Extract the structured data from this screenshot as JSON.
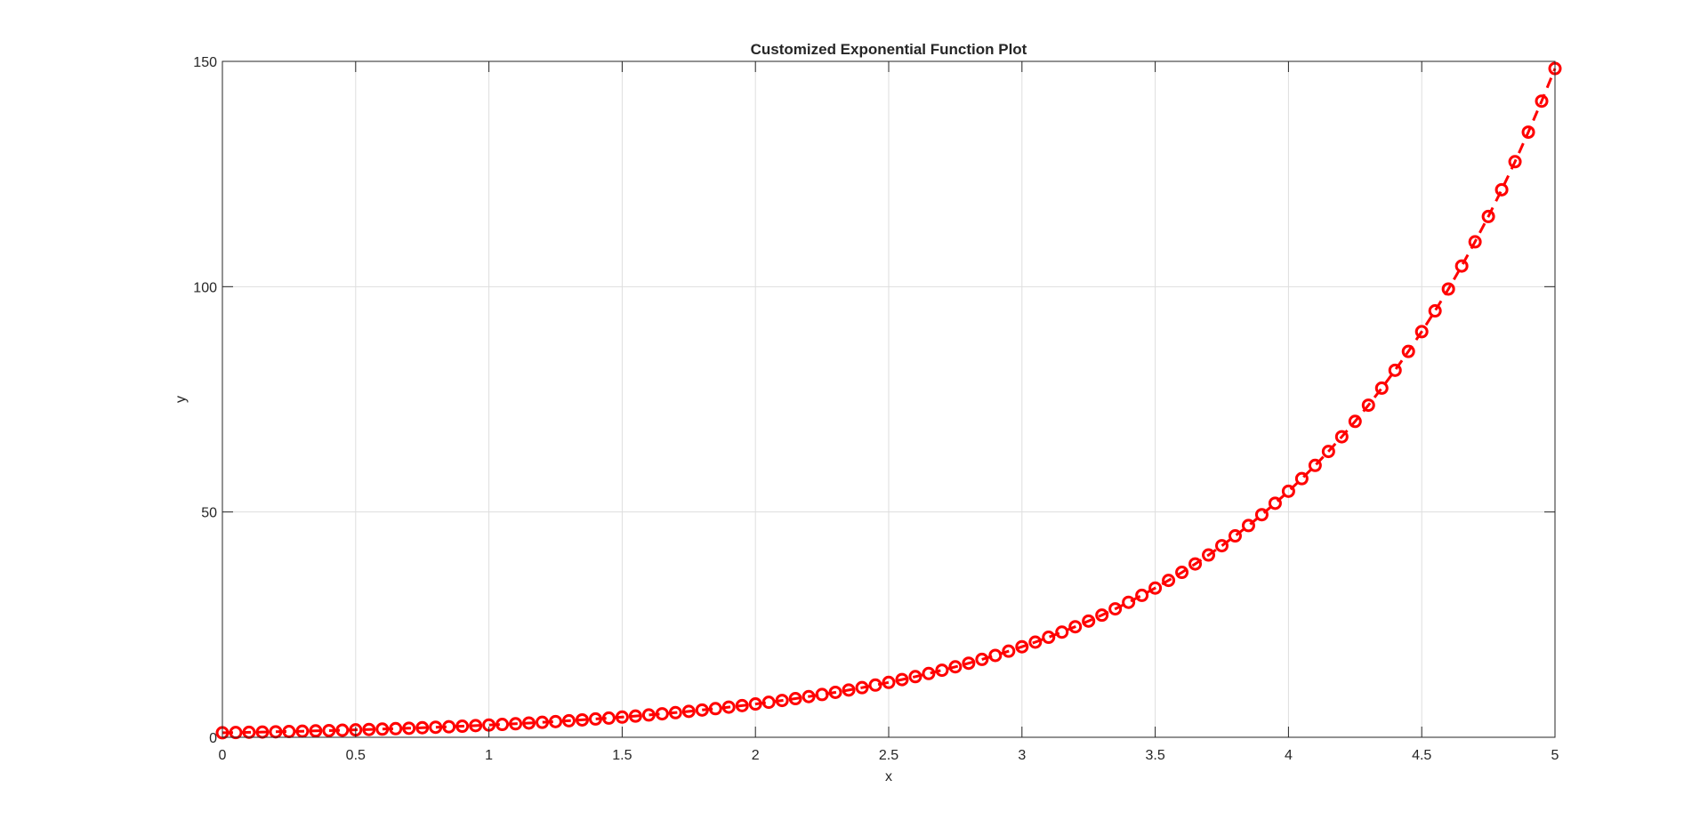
{
  "chart_data": {
    "type": "line",
    "title": "Customized Exponential Function Plot",
    "xlabel": "x",
    "ylabel": "y",
    "xlim": [
      0,
      5
    ],
    "ylim": [
      0,
      150
    ],
    "xticks": [
      "0",
      "0.5",
      "1",
      "1.5",
      "2",
      "2.5",
      "3",
      "3.5",
      "4",
      "4.5",
      "5"
    ],
    "yticks": [
      "0",
      "50",
      "100",
      "150"
    ],
    "grid": true,
    "legend": "none",
    "line_style": "dashed",
    "marker": "circle",
    "series": [
      {
        "color": "#ff0000",
        "x": [
          0,
          0.05,
          0.1,
          0.15,
          0.2,
          0.25,
          0.3,
          0.35,
          0.4,
          0.45,
          0.5,
          0.55,
          0.6,
          0.65,
          0.7,
          0.75,
          0.8,
          0.85,
          0.9,
          0.95,
          1,
          1.05,
          1.1,
          1.15,
          1.2,
          1.25,
          1.3,
          1.35,
          1.4,
          1.45,
          1.5,
          1.55,
          1.6,
          1.65,
          1.7,
          1.75,
          1.8,
          1.85,
          1.9,
          1.95,
          2,
          2.05,
          2.1,
          2.15,
          2.2,
          2.25,
          2.3,
          2.35,
          2.4,
          2.45,
          2.5,
          2.55,
          2.6,
          2.65,
          2.7,
          2.75,
          2.8,
          2.85,
          2.9,
          2.95,
          3,
          3.05,
          3.1,
          3.15,
          3.2,
          3.25,
          3.3,
          3.35,
          3.4,
          3.45,
          3.5,
          3.55,
          3.6,
          3.65,
          3.7,
          3.75,
          3.8,
          3.85,
          3.9,
          3.95,
          4,
          4.05,
          4.1,
          4.15,
          4.2,
          4.25,
          4.3,
          4.35,
          4.4,
          4.45,
          4.5,
          4.55,
          4.6,
          4.65,
          4.7,
          4.75,
          4.8,
          4.85,
          4.9,
          4.95,
          5
        ],
        "y": [
          1,
          1.05,
          1.11,
          1.16,
          1.22,
          1.28,
          1.35,
          1.42,
          1.49,
          1.57,
          1.65,
          1.73,
          1.82,
          1.92,
          2.01,
          2.12,
          2.23,
          2.34,
          2.46,
          2.59,
          2.72,
          2.86,
          3,
          3.16,
          3.32,
          3.49,
          3.67,
          3.86,
          4.06,
          4.26,
          4.48,
          4.71,
          4.95,
          5.21,
          5.47,
          5.75,
          6.05,
          6.36,
          6.69,
          7.03,
          7.39,
          7.77,
          8.17,
          8.58,
          9.03,
          9.49,
          9.97,
          10.49,
          11.02,
          11.59,
          12.18,
          12.81,
          13.46,
          14.15,
          14.88,
          15.64,
          16.44,
          17.29,
          18.17,
          19.11,
          20.09,
          21.12,
          22.2,
          23.34,
          24.53,
          25.79,
          27.11,
          28.5,
          29.96,
          31.5,
          33.12,
          34.81,
          36.6,
          38.47,
          40.45,
          42.52,
          44.7,
          46.99,
          49.4,
          51.94,
          54.6,
          57.4,
          60.34,
          63.43,
          66.69,
          70.11,
          73.7,
          77.48,
          81.45,
          85.63,
          90.02,
          94.63,
          99.48,
          104.58,
          109.95,
          115.58,
          121.51,
          127.74,
          134.29,
          141.17,
          148.41
        ]
      }
    ]
  }
}
